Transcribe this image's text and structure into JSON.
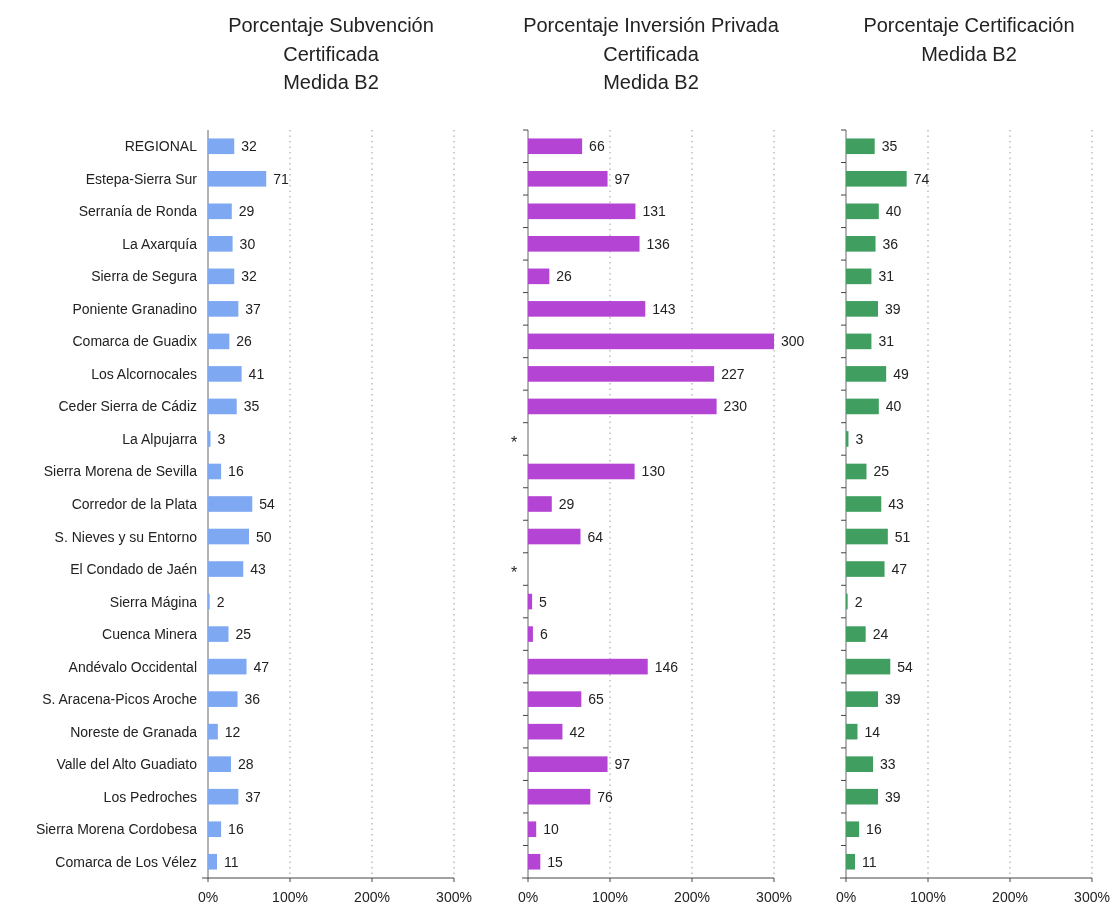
{
  "chart_data": [
    {
      "type": "bar",
      "orientation": "horizontal",
      "title": "Porcentaje Subvención\nCertificada\nMedida B2",
      "categories": [
        "REGIONAL",
        "Estepa-Sierra Sur",
        "Serranía de Ronda",
        "La Axarquía",
        "Sierra de Segura",
        "Poniente Granadino",
        "Comarca de Guadix",
        "Los Alcornocales",
        "Ceder Sierra de Cádiz",
        "La Alpujarra",
        "Sierra Morena de Sevilla",
        "Corredor de la Plata",
        "S. Nieves y su Entorno",
        "El Condado de Jaén",
        "Sierra Mágina",
        "Cuenca Minera",
        "Andévalo Occidental",
        "S. Aracena-Picos Aroche",
        "Noreste de Granada",
        "Valle del Alto Guadiato",
        "Los Pedroches",
        "Sierra Morena Cordobesa",
        "Comarca de Los Vélez"
      ],
      "values": [
        32,
        71,
        29,
        30,
        32,
        37,
        26,
        41,
        35,
        3,
        16,
        54,
        50,
        43,
        2,
        25,
        47,
        36,
        12,
        28,
        37,
        16,
        11
      ],
      "color": "#7ea9f2",
      "xlim": [
        0,
        300
      ],
      "xticks": [
        {
          "value": 0,
          "label": "0%"
        },
        {
          "value": 100,
          "label": "100%"
        },
        {
          "value": 200,
          "label": "200%"
        },
        {
          "value": 300,
          "label": "300%"
        }
      ],
      "grid": "x",
      "data_labels": true
    },
    {
      "type": "bar",
      "orientation": "horizontal",
      "title": "Porcentaje Inversión Privada\nCertificada\nMedida B2",
      "categories": [
        null,
        null,
        null,
        null,
        null,
        null,
        null,
        null,
        null,
        null,
        null,
        null,
        null,
        null,
        null,
        null,
        null,
        null,
        null,
        null,
        null,
        null,
        null
      ],
      "values": [
        66,
        97,
        131,
        136,
        26,
        143,
        300,
        227,
        230,
        null,
        130,
        29,
        64,
        null,
        5,
        6,
        146,
        65,
        42,
        97,
        76,
        10,
        15
      ],
      "color": "#b444d4",
      "value_labels": [
        "66",
        "97",
        "131",
        "136",
        "26",
        "143",
        "300",
        "227",
        "230",
        "*",
        "130",
        "29",
        "64",
        "*",
        "5",
        "6",
        "146",
        "65",
        "42",
        "97",
        "76",
        "10",
        "15"
      ],
      "xlim": [
        0,
        300
      ],
      "xticks": [
        {
          "value": 0,
          "label": "0%"
        },
        {
          "value": 100,
          "label": "100%"
        },
        {
          "value": 200,
          "label": "200%"
        },
        {
          "value": 300,
          "label": "300%"
        }
      ],
      "grid": "x",
      "tick_labels": "x"
    },
    {
      "type": "bar",
      "orientation": "horizontal",
      "title": "Porcentaje Certificación\nMedida B2",
      "categories": [
        null,
        null,
        null,
        null,
        null,
        null,
        null,
        null,
        null,
        null,
        null,
        null,
        null,
        null,
        null,
        null,
        null,
        null,
        null,
        null,
        null,
        null,
        null
      ],
      "values": [
        35,
        74,
        40,
        36,
        31,
        39,
        31,
        49,
        40,
        3,
        25,
        43,
        51,
        47,
        2,
        24,
        54,
        39,
        14,
        33,
        39,
        16,
        11
      ],
      "color": "#3f9e60",
      "xlim": [
        0,
        300
      ],
      "xticks": [
        {
          "value": 0,
          "label": "0%"
        },
        {
          "value": 100,
          "label": "100%"
        },
        {
          "value": 200,
          "label": "200%"
        },
        {
          "value": 300,
          "label": "300%"
        }
      ],
      "grid": "x",
      "data_labels": true,
      "tick_labels": "x"
    }
  ]
}
